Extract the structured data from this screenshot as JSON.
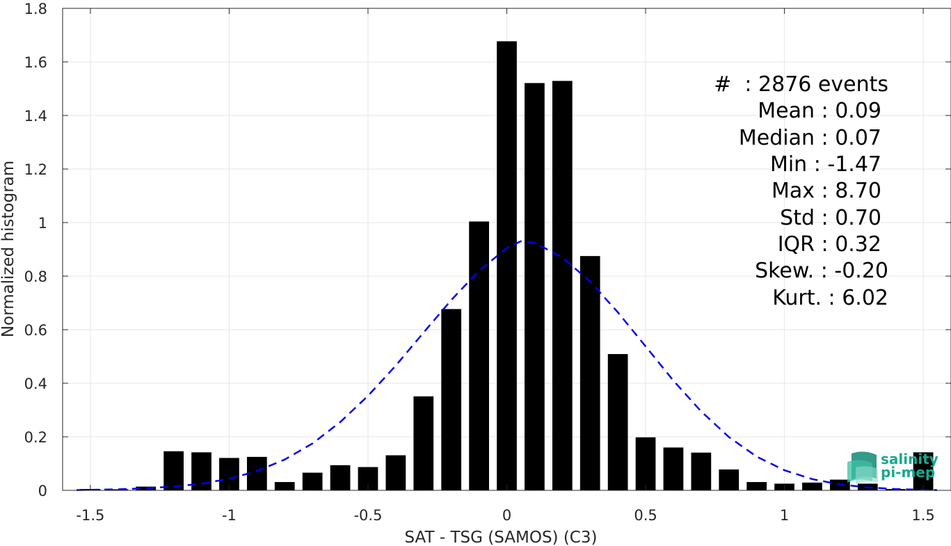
{
  "chart_data": {
    "type": "bar",
    "xlabel": "SAT - TSG (SAMOS) (C3)",
    "ylabel": "Normalized histogram",
    "xlim": [
      -1.6,
      1.6
    ],
    "ylim": [
      0,
      1.8
    ],
    "xticks": [
      -1.5,
      -1,
      -0.5,
      0,
      0.5,
      1,
      1.5
    ],
    "xtick_labels": [
      "-1.5",
      "-1",
      "-0.5",
      "0",
      "0.5",
      "1",
      "1.5"
    ],
    "yticks": [
      0,
      0.2,
      0.4,
      0.6,
      0.8,
      1,
      1.2,
      1.4,
      1.6,
      1.8
    ],
    "ytick_labels": [
      "0",
      "0.2",
      "0.4",
      "0.6",
      "0.8",
      "1",
      "1.2",
      "1.4",
      "1.6",
      "1.8"
    ],
    "grid": true,
    "bin_width": 0.1,
    "bins": [
      {
        "x": -1.5,
        "y": 0.005
      },
      {
        "x": -1.4,
        "y": 0.004
      },
      {
        "x": -1.3,
        "y": 0.014
      },
      {
        "x": -1.2,
        "y": 0.146
      },
      {
        "x": -1.1,
        "y": 0.142
      },
      {
        "x": -1.0,
        "y": 0.121
      },
      {
        "x": -0.9,
        "y": 0.125
      },
      {
        "x": -0.8,
        "y": 0.031
      },
      {
        "x": -0.7,
        "y": 0.066
      },
      {
        "x": -0.6,
        "y": 0.094
      },
      {
        "x": -0.5,
        "y": 0.087
      },
      {
        "x": -0.4,
        "y": 0.131
      },
      {
        "x": -0.3,
        "y": 0.351
      },
      {
        "x": -0.2,
        "y": 0.677
      },
      {
        "x": -0.1,
        "y": 1.004
      },
      {
        "x": 0.0,
        "y": 1.677
      },
      {
        "x": 0.1,
        "y": 1.521
      },
      {
        "x": 0.2,
        "y": 1.529
      },
      {
        "x": 0.3,
        "y": 0.875
      },
      {
        "x": 0.4,
        "y": 0.509
      },
      {
        "x": 0.5,
        "y": 0.198
      },
      {
        "x": 0.6,
        "y": 0.16
      },
      {
        "x": 0.7,
        "y": 0.141
      },
      {
        "x": 0.8,
        "y": 0.078
      },
      {
        "x": 0.9,
        "y": 0.031
      },
      {
        "x": 1.0,
        "y": 0.025
      },
      {
        "x": 1.1,
        "y": 0.029
      },
      {
        "x": 1.2,
        "y": 0.04
      },
      {
        "x": 1.3,
        "y": 0.025
      },
      {
        "x": 1.4,
        "y": 0.005
      },
      {
        "x": 1.5,
        "y": 0.142
      }
    ],
    "fit_curve": {
      "style": "dashed",
      "color": "#0000ee",
      "x": [
        -1.55,
        -1.5,
        -1.4,
        -1.3,
        -1.2,
        -1.1,
        -1.0,
        -0.9,
        -0.8,
        -0.7,
        -0.6,
        -0.5,
        -0.4,
        -0.3,
        -0.2,
        -0.1,
        0.0,
        0.05,
        0.1,
        0.2,
        0.3,
        0.4,
        0.5,
        0.6,
        0.7,
        0.8,
        0.9,
        1.0,
        1.1,
        1.2,
        1.3,
        1.4,
        1.5,
        1.55
      ],
      "y": [
        0.001,
        0.002,
        0.004,
        0.008,
        0.014,
        0.025,
        0.043,
        0.072,
        0.115,
        0.175,
        0.255,
        0.353,
        0.466,
        0.589,
        0.711,
        0.82,
        0.905,
        0.93,
        0.925,
        0.87,
        0.78,
        0.665,
        0.538,
        0.41,
        0.295,
        0.199,
        0.126,
        0.075,
        0.042,
        0.022,
        0.011,
        0.005,
        0.002,
        0.001
      ]
    },
    "colors": {
      "bars": "#000000",
      "fit": "#0000ee",
      "grid": "#e6e6e6",
      "axis": "#262626"
    }
  },
  "stats": [
    "#  : 2876 events",
    "Mean : 0.09",
    "Median : 0.07",
    "Min : -1.47",
    "Max : 8.70",
    "Std : 0.70",
    "IQR : 0.32",
    "Skew. : -0.20",
    "Kurt. : 6.02"
  ],
  "logo": {
    "line1": "salinity",
    "line2": "pi-mep",
    "color": "#1aa88f"
  }
}
